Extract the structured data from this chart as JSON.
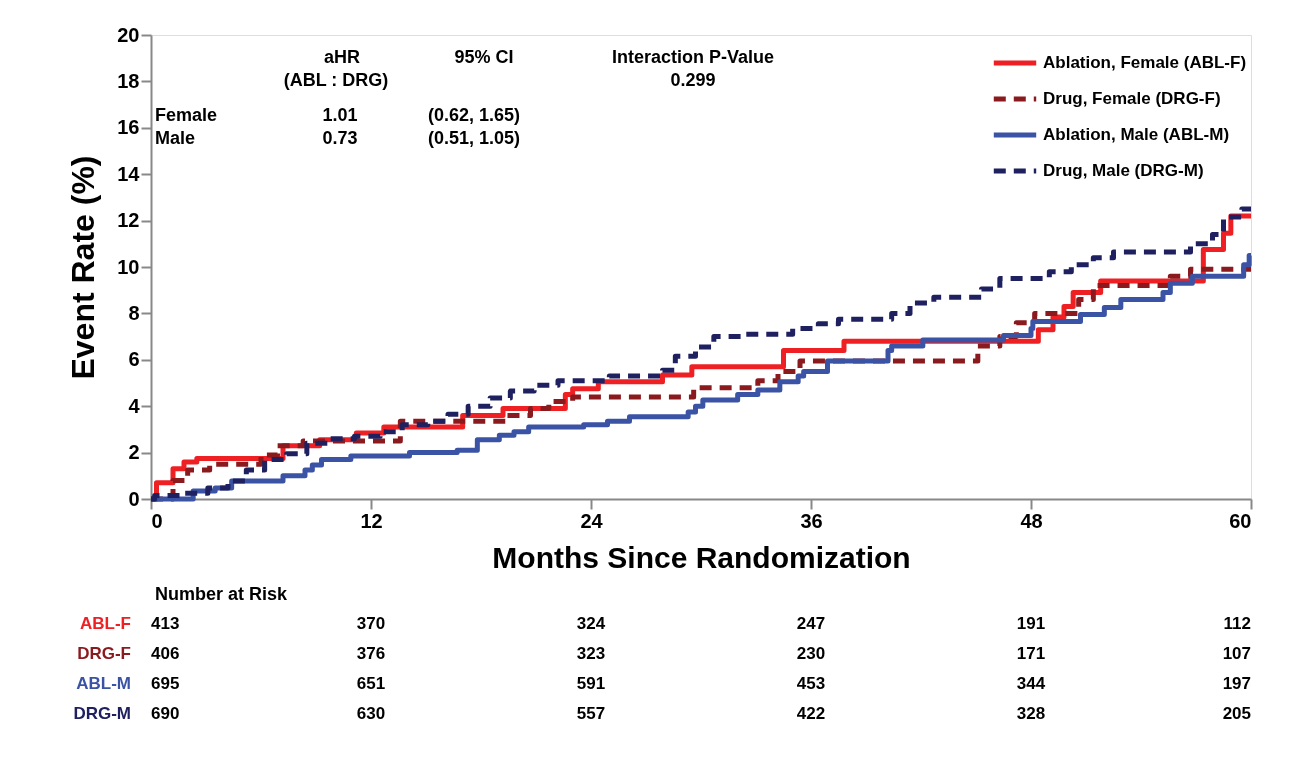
{
  "chart_data": {
    "type": "step",
    "xlabel": "Months Since Randomization",
    "ylabel": "Event Rate (%)",
    "xlim": [
      0,
      60
    ],
    "xticks": [
      0,
      12,
      24,
      36,
      48,
      60
    ],
    "ylim": [
      0,
      20
    ],
    "yticks": [
      0,
      2,
      4,
      6,
      8,
      10,
      12,
      14,
      16,
      18,
      20
    ],
    "legend": "top right",
    "grid": false,
    "annotations": [
      "aHR",
      "(ABL : DRG)",
      "95% CI",
      "Interaction P-Value",
      "0.299",
      "Female",
      "1.01",
      "(0.62, 1.65)",
      "Male",
      "0.73",
      "(0.51, 1.05)",
      "Number at Risk",
      "ABL-F",
      "413",
      "370",
      "324",
      "247",
      "191",
      "112",
      "DRG-F",
      "406",
      "376",
      "323",
      "230",
      "171",
      "107",
      "ABL-M",
      "695",
      "651",
      "591",
      "453",
      "344",
      "197",
      "DRG-M",
      "690",
      "630",
      "557",
      "422",
      "328",
      "205"
    ],
    "series": [
      {
        "name": "Ablation, Female (ABL-F)",
        "color": "#ee2024",
        "line_style": "solid",
        "x": [
          0,
          0.3,
          1.2,
          1.8,
          2.5,
          7.2,
          9.2,
          11.2,
          12.7,
          17,
          19.2,
          22.6,
          23,
          24.4,
          27.9,
          29.5,
          34.5,
          37.8,
          48.4,
          49.2,
          49.8,
          50.3,
          51.8,
          57.4,
          58.5,
          58.9,
          60
        ],
        "values": [
          0,
          0.7,
          1.3,
          1.6,
          1.75,
          2.3,
          2.55,
          2.85,
          3.1,
          3.6,
          3.9,
          4.5,
          4.75,
          5.05,
          5.35,
          5.7,
          6.4,
          6.8,
          7.3,
          7.85,
          8.3,
          8.9,
          9.4,
          10.75,
          11.45,
          12.2,
          12.2
        ]
      },
      {
        "name": "Drug, Female (DRG-F)",
        "color": "#8b1a1f",
        "line_style": "dashed",
        "x": [
          0,
          1.2,
          2,
          3.2,
          6,
          6.9,
          8.3,
          13.6,
          19.4,
          20.7,
          21.7,
          23,
          29.6,
          33.1,
          34.2,
          35.4,
          45.1,
          46.3,
          47.2,
          48.2,
          50.6,
          51.4,
          55.6,
          56.7,
          60
        ],
        "values": [
          0,
          0.8,
          1.25,
          1.5,
          1.9,
          2.3,
          2.5,
          3.35,
          3.6,
          3.9,
          4.2,
          4.4,
          4.8,
          5.1,
          5.5,
          5.95,
          6.6,
          7.0,
          7.6,
          8.0,
          8.6,
          9.2,
          9.6,
          9.9,
          9.9
        ]
      },
      {
        "name": "Ablation, Male (ABL-M)",
        "color": "#3a53a4",
        "line_style": "solid",
        "x": [
          0,
          2.3,
          3.5,
          4.4,
          7.2,
          8.4,
          8.8,
          9.3,
          10.9,
          14.1,
          16.7,
          17.8,
          19,
          19.8,
          20.6,
          23.6,
          24.9,
          26.1,
          29.3,
          29.7,
          30.1,
          32,
          33.1,
          34.3,
          35.3,
          35.6,
          36.9,
          40.2,
          40.4,
          42.1,
          46.5,
          48,
          48.1,
          50.7,
          52,
          52.9,
          55.2,
          55.6,
          56.8,
          59.6,
          59.9,
          60
        ],
        "values": [
          0,
          0.35,
          0.47,
          0.78,
          1.0,
          1.25,
          1.47,
          1.7,
          1.85,
          2.0,
          2.1,
          2.55,
          2.75,
          2.9,
          3.1,
          3.2,
          3.35,
          3.55,
          3.75,
          4.0,
          4.27,
          4.5,
          4.7,
          5.05,
          5.3,
          5.5,
          5.95,
          6.4,
          6.6,
          6.85,
          7.05,
          7.35,
          7.65,
          7.95,
          8.25,
          8.6,
          8.9,
          9.3,
          9.6,
          10.1,
          10.5,
          10.5
        ]
      },
      {
        "name": "Drug, Male (DRG-M)",
        "color": "#1f2060",
        "line_style": "dashed",
        "x": [
          0,
          0.2,
          1.7,
          3.1,
          4.2,
          5.2,
          6.2,
          7.4,
          8.5,
          9.7,
          11.1,
          12.5,
          13.7,
          15.1,
          16.2,
          17.3,
          18.5,
          19.6,
          20.9,
          22.2,
          25,
          27.9,
          28.6,
          29.7,
          30.7,
          32.2,
          35,
          36.4,
          37.5,
          40.4,
          41.4,
          42.7,
          45.3,
          46.3,
          49,
          50.2,
          51.4,
          52.5,
          56.7,
          57.9,
          58.5,
          59.5,
          60
        ],
        "values": [
          0,
          0.15,
          0.25,
          0.47,
          0.78,
          1.25,
          1.7,
          1.95,
          2.4,
          2.6,
          2.7,
          2.9,
          3.2,
          3.35,
          3.65,
          4.0,
          4.35,
          4.65,
          4.9,
          5.1,
          5.3,
          5.55,
          6.15,
          6.55,
          7.0,
          7.1,
          7.35,
          7.55,
          7.75,
          8.0,
          8.45,
          8.7,
          9.05,
          9.5,
          9.8,
          10.1,
          10.4,
          10.65,
          11.0,
          11.4,
          12.15,
          12.5,
          12.5
        ]
      }
    ]
  }
}
